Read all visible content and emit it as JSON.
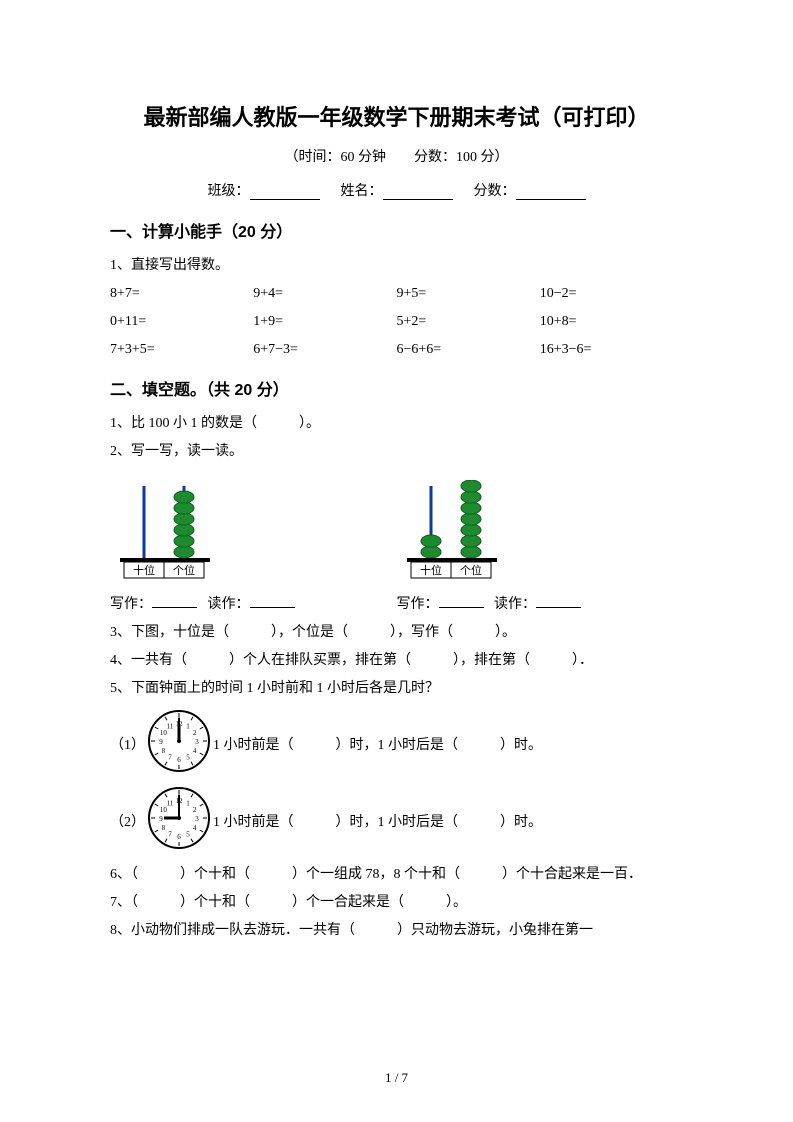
{
  "title": "最新部编人教版一年级数学下册期末考试（可打印）",
  "subtitle": "（时间：60 分钟　　分数：100 分）",
  "info": {
    "class": "班级：",
    "name": "姓名：",
    "score": "分数："
  },
  "s1": {
    "heading": "一、计算小能手（20 分）",
    "q1": "1、直接写出得数。",
    "rows": [
      [
        "8+7=",
        "9+4=",
        "9+5=",
        "10−2="
      ],
      [
        "0+11=",
        "1+9=",
        "5+2=",
        "10+8="
      ],
      [
        "7+3+5=",
        "6+7−3=",
        "6−6+6=",
        "16+3−6="
      ]
    ]
  },
  "s2": {
    "heading": "二、填空题。（共 20 分）",
    "q1": "1、比 100 小 1 的数是（　　　）。",
    "q2": "2、写一写，读一读。",
    "abacus1": {
      "tens_beads": 0,
      "ones_beads": 5,
      "tens_label": "十位",
      "ones_label": "个位",
      "bead_color": "#1e8c2e",
      "rod_color": "#0b3aa3"
    },
    "abacus2": {
      "tens_beads": 1,
      "ones_beads": 6,
      "tens_label": "十位",
      "ones_label": "个位",
      "bead_color": "#1e8c2e",
      "rod_color": "#0b3aa3"
    },
    "write": "写作：",
    "read": "读作：",
    "q3": "3、下图，十位是（　　　），个位是（　　　），写作（　　　）。",
    "q4": "4、一共有（　　　）个人在排队买票，排在第（　　　），排在第（　　　）．",
    "q5": "5、下面钟面上的时间 1 小时前和 1 小时后各是几时？",
    "q5_1a": "（1）",
    "q5_1b": "1 小时前是（　　　）时，1 小时后是（　　　）时。",
    "q5_2a": "（2）",
    "q5_2b": "1 小时前是（　　　）时，1 小时后是（　　　）时。",
    "clock1": {
      "hour": 12,
      "minute": 0
    },
    "clock2": {
      "hour": 9,
      "minute": 0
    },
    "q6": "6、（　　　）个十和（　　　）个一组成 78，8 个十和（　　　）个十合起来是一百．",
    "q7": "7、（　　　）个十和（　　　）个一合起来是（　　　）。",
    "q8": "8、小动物们排成一队去游玩．一共有（　　　）只动物去游玩，小兔排在第一"
  },
  "pager": "1 / 7"
}
